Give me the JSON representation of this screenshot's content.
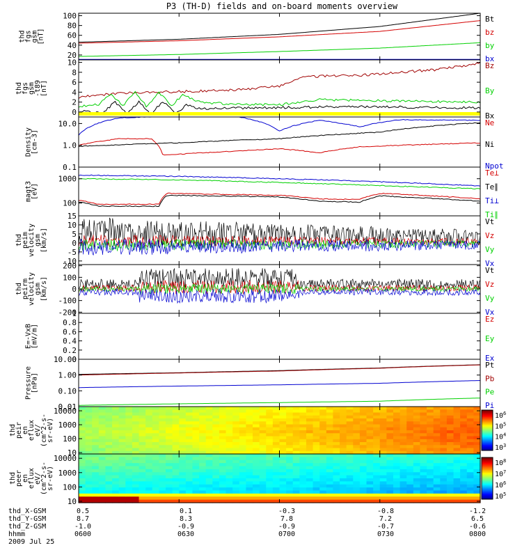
{
  "title": "P3 (TH-D) fields and on-board moments overview",
  "date_label": "2009 Jul 25",
  "chart_data": [
    {
      "id": "fgs_gsm",
      "type": "line",
      "ylabel": [
        "thd",
        "fgs",
        "gsm",
        "[nT]"
      ],
      "ylim": [
        10,
        105
      ],
      "yticks": [
        20,
        40,
        60,
        80,
        100
      ],
      "series": [
        {
          "name": "Bt",
          "color": "#000000",
          "x": [
            0,
            0.25,
            0.5,
            0.75,
            1
          ],
          "y": [
            46,
            52,
            62,
            78,
            105
          ]
        },
        {
          "name": "bz",
          "color": "#d40000",
          "x": [
            0,
            0.25,
            0.5,
            0.75,
            1
          ],
          "y": [
            44,
            49,
            57,
            68,
            90
          ]
        },
        {
          "name": "by",
          "color": "#00d000",
          "x": [
            0,
            0.25,
            0.5,
            0.75,
            1
          ],
          "y": [
            17,
            21,
            27,
            34,
            45
          ]
        },
        {
          "name": "bx",
          "color": "#0000d0",
          "x": [
            0,
            0.5,
            1
          ],
          "y": [
            11,
            11,
            11
          ]
        }
      ]
    },
    {
      "id": "fgs_gsm_t89",
      "type": "line",
      "ylabel": [
        "thd",
        "fgs",
        "gsm",
        "-t89",
        "[nT]"
      ],
      "ylim": [
        -1,
        10.5
      ],
      "yticks": [
        0,
        2,
        4,
        6,
        8,
        10
      ],
      "series": [
        {
          "name": "Bz",
          "color": "#a00000",
          "x": [
            0,
            0.1,
            0.2,
            0.3,
            0.4,
            0.5,
            0.55,
            0.6,
            0.7,
            0.8,
            0.9,
            1
          ],
          "y": [
            3,
            3.8,
            4,
            4.2,
            4.5,
            5.2,
            7.0,
            7.2,
            7.4,
            8.0,
            8.6,
            9.8
          ]
        },
        {
          "name": "By",
          "color": "#00d000",
          "x": [
            0,
            0.05,
            0.08,
            0.11,
            0.14,
            0.17,
            0.2,
            0.23,
            0.26,
            0.3,
            0.4,
            0.5,
            0.6,
            0.8,
            1
          ],
          "y": [
            1.2,
            1.5,
            3.8,
            1.2,
            4.0,
            1.0,
            4.0,
            1.2,
            3.5,
            2.0,
            1.5,
            1.5,
            2.5,
            2.2,
            2.0
          ]
        },
        {
          "name": "Bx",
          "color": "#000000",
          "x": [
            0,
            0.06,
            0.09,
            0.12,
            0.15,
            0.18,
            0.21,
            0.24,
            0.27,
            0.3,
            0.5,
            0.7,
            1
          ],
          "y": [
            0.2,
            -0.3,
            2.0,
            -0.4,
            2.0,
            -0.5,
            2.2,
            -0.3,
            1.5,
            0.7,
            0.9,
            1.1,
            0.8
          ]
        }
      ]
    },
    {
      "id": "density",
      "type": "line",
      "scale": "log",
      "ylabel": [
        "Density",
        "[cm-3]"
      ],
      "ylim": [
        0.1,
        20
      ],
      "yticks": [
        0.1,
        1.0,
        10.0
      ],
      "ytick_labels": [
        "0.1",
        "1.0",
        "10.0"
      ],
      "series": [
        {
          "name": "Ne",
          "color": "#d40000",
          "x": [
            0,
            0.1,
            0.18,
            0.21,
            0.26,
            0.4,
            0.5,
            0.6,
            0.7,
            0.8,
            1
          ],
          "y": [
            1.0,
            2.0,
            2.0,
            0.35,
            0.4,
            0.55,
            0.7,
            0.45,
            0.85,
            1.0,
            1.3
          ]
        },
        {
          "name": "Ni",
          "color": "#000000",
          "x": [
            0,
            0.25,
            0.5,
            0.75,
            1
          ],
          "y": [
            0.9,
            1.3,
            2.0,
            4.0,
            11.0
          ]
        },
        {
          "name": "Npot",
          "color": "#0000d0",
          "x": [
            0,
            0.1,
            0.2,
            0.3,
            0.4,
            0.5,
            0.6,
            0.7,
            0.8,
            1
          ],
          "y": [
            3.0,
            18,
            21,
            22,
            20,
            4.5,
            14,
            7,
            15,
            14
          ]
        }
      ]
    },
    {
      "id": "temperature",
      "type": "line",
      "scale": "log",
      "ylabel": [
        "magt3",
        "[eV]"
      ],
      "ylim": [
        30,
        3000
      ],
      "yticks": [
        100,
        1000
      ],
      "ytick_labels": [
        "100",
        "1000"
      ],
      "series": [
        {
          "name": "Te⊥",
          "color": "#d40000",
          "x": [
            0,
            0.05,
            0.1,
            0.2,
            0.22,
            0.5,
            0.6,
            0.7,
            0.75,
            0.8,
            1
          ],
          "y": [
            130,
            90,
            90,
            90,
            250,
            210,
            150,
            140,
            250,
            230,
            150
          ]
        },
        {
          "name": "Te∥",
          "color": "#000000",
          "x": [
            0,
            0.05,
            0.1,
            0.2,
            0.22,
            0.5,
            0.6,
            0.7,
            0.75,
            0.8,
            1
          ],
          "y": [
            110,
            75,
            75,
            75,
            210,
            180,
            120,
            110,
            200,
            180,
            120
          ]
        },
        {
          "name": "Ti⊥",
          "color": "#0000d0",
          "x": [
            0,
            0.25,
            0.5,
            0.75,
            1
          ],
          "y": [
            1400,
            1250,
            1000,
            750,
            500
          ]
        },
        {
          "name": "Ti∥",
          "color": "#00d000",
          "x": [
            0,
            0.25,
            0.5,
            0.75,
            1
          ],
          "y": [
            1000,
            900,
            700,
            520,
            380
          ]
        }
      ]
    },
    {
      "id": "peim_velocity",
      "type": "line",
      "ylabel": [
        "thd",
        "peim",
        "velocity",
        "gsm",
        "[km/s]"
      ],
      "ylim": [
        -12,
        15
      ],
      "yticks": [
        -10,
        -5,
        0,
        5,
        10,
        15
      ],
      "series": [
        {
          "name": "Vt",
          "color": "#000000",
          "amp": 7,
          "offset": 5
        },
        {
          "name": "Vz",
          "color": "#d40000",
          "amp": 3,
          "offset": 1
        },
        {
          "name": "Vy",
          "color": "#00d000",
          "amp": 3,
          "offset": -1
        },
        {
          "name": "Vx",
          "color": "#0000d0",
          "amp": 4,
          "offset": -2
        }
      ]
    },
    {
      "id": "peirm_velocity",
      "type": "line",
      "ylabel": [
        "thd",
        "peirm",
        "velocity",
        "gsm",
        "[km/s]"
      ],
      "ylim": [
        -210,
        210
      ],
      "yticks": [
        -200,
        -100,
        0,
        100,
        200
      ],
      "series": [
        {
          "name": "Vt",
          "color": "#000000",
          "amp": 60,
          "offset": 60
        },
        {
          "name": "Vz",
          "color": "#d40000",
          "amp": 40,
          "offset": 10
        },
        {
          "name": "Vy",
          "color": "#00d000",
          "amp": 30,
          "offset": 0
        },
        {
          "name": "Vx",
          "color": "#0000d0",
          "amp": 40,
          "offset": -40
        }
      ]
    },
    {
      "id": "efield",
      "type": "line",
      "ylabel": [
        "E=-VxB",
        "[mV/m]"
      ],
      "ylim": [
        0,
        1.0
      ],
      "yticks": [
        0.0,
        0.2,
        0.4,
        0.6,
        0.8,
        1.0
      ],
      "series": [
        {
          "name": "Ez",
          "color": "#d40000"
        },
        {
          "name": "Ey",
          "color": "#00d000"
        },
        {
          "name": "Ex",
          "color": "#0000d0"
        }
      ]
    },
    {
      "id": "pressure",
      "type": "line",
      "scale": "log",
      "ylabel": [
        "Pressure",
        "[nPa]"
      ],
      "ylim": [
        0.01,
        10
      ],
      "yticks": [
        0.01,
        0.1,
        1.0,
        10.0
      ],
      "ytick_labels": [
        "0.01",
        "0.10",
        "1.00",
        "10.00"
      ],
      "series": [
        {
          "name": "Pt",
          "color": "#000000",
          "x": [
            0,
            0.25,
            0.5,
            0.75,
            1
          ],
          "y": [
            1.1,
            1.4,
            1.9,
            2.8,
            4.5
          ]
        },
        {
          "name": "Pb",
          "color": "#a00000",
          "x": [
            0,
            0.25,
            0.5,
            0.75,
            1
          ],
          "y": [
            1.0,
            1.35,
            1.8,
            2.7,
            4.4
          ]
        },
        {
          "name": "Pe",
          "color": "#00d000",
          "x": [
            0,
            0.25,
            0.5,
            0.75,
            1
          ],
          "y": [
            0.012,
            0.015,
            0.018,
            0.022,
            0.035
          ]
        },
        {
          "name": "Pi",
          "color": "#0000d0",
          "x": [
            0,
            0.25,
            0.5,
            0.75,
            1
          ],
          "y": [
            0.16,
            0.2,
            0.24,
            0.3,
            0.45
          ]
        }
      ]
    },
    {
      "id": "peir_spectrogram",
      "type": "heatmap",
      "ylabel": [
        "thd",
        "peir",
        "en",
        "eflux",
        "eV/",
        "(cm^2-s-",
        "sr-eV)"
      ],
      "ylim": [
        8,
        20000
      ],
      "yticks": [
        10,
        100,
        1000,
        10000
      ],
      "ytick_labels": [
        "10",
        "100",
        "1000",
        "10000"
      ],
      "colorbar_ticks": [
        "10^6",
        "10^5",
        "10^4",
        "10^3"
      ],
      "colorbar_range": [
        1000,
        3000000
      ]
    },
    {
      "id": "peer_spectrogram",
      "type": "heatmap",
      "ylabel": [
        "thd",
        "peer",
        "en",
        "eflux",
        "eV/",
        "(cm^2-s-",
        "sr-eV)"
      ],
      "ylim": [
        8,
        20000
      ],
      "yticks": [
        10,
        100,
        1000,
        10000
      ],
      "ytick_labels": [
        "10",
        "100",
        "1000",
        "10000"
      ],
      "colorbar_ticks": [
        "10^8",
        "10^7",
        "10^6",
        "10^5"
      ],
      "colorbar_range": [
        30000,
        300000000
      ]
    }
  ],
  "ephemeris": {
    "labels": [
      "thd_X-GSM",
      "thd_Y-GSM",
      "thd_Z-GSM",
      "hhmm"
    ],
    "columns": [
      {
        "x": "0.5",
        "y": "8.7",
        "z": "-1.0",
        "t": "0600"
      },
      {
        "x": "0.1",
        "y": "8.3",
        "z": "-0.9",
        "t": "0630"
      },
      {
        "x": "-0.3",
        "y": "7.8",
        "z": "-0.9",
        "t": "0700"
      },
      {
        "x": "-0.8",
        "y": "7.2",
        "z": "-0.7",
        "t": "0730"
      },
      {
        "x": "-1.2",
        "y": "6.5",
        "z": "-0.6",
        "t": "0800"
      }
    ]
  }
}
